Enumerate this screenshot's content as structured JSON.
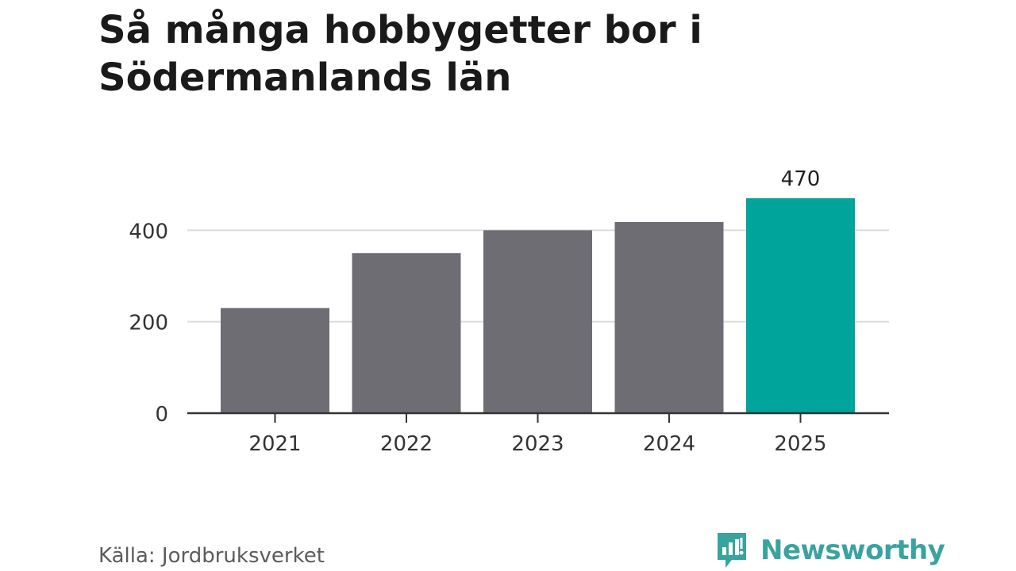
{
  "chart_data": {
    "type": "bar",
    "title": "Så många hobbygetter bor i Södermanlands län",
    "categories": [
      "2021",
      "2022",
      "2023",
      "2024",
      "2025"
    ],
    "values": [
      230,
      350,
      400,
      418,
      470
    ],
    "data_labels": [
      null,
      null,
      null,
      null,
      "470"
    ],
    "y_ticks": [
      0,
      200,
      400
    ],
    "ylim": [
      0,
      470
    ],
    "grid": true,
    "bar_color": "#6e6d74",
    "highlight_color": "#00a49a",
    "highlight_index": 4
  },
  "footer": {
    "source": "Källa: Jordbruksverket",
    "brand": "Newsworthy",
    "brand_icon": "newsworthy-logo-icon",
    "brand_color": "#39a3a0"
  }
}
